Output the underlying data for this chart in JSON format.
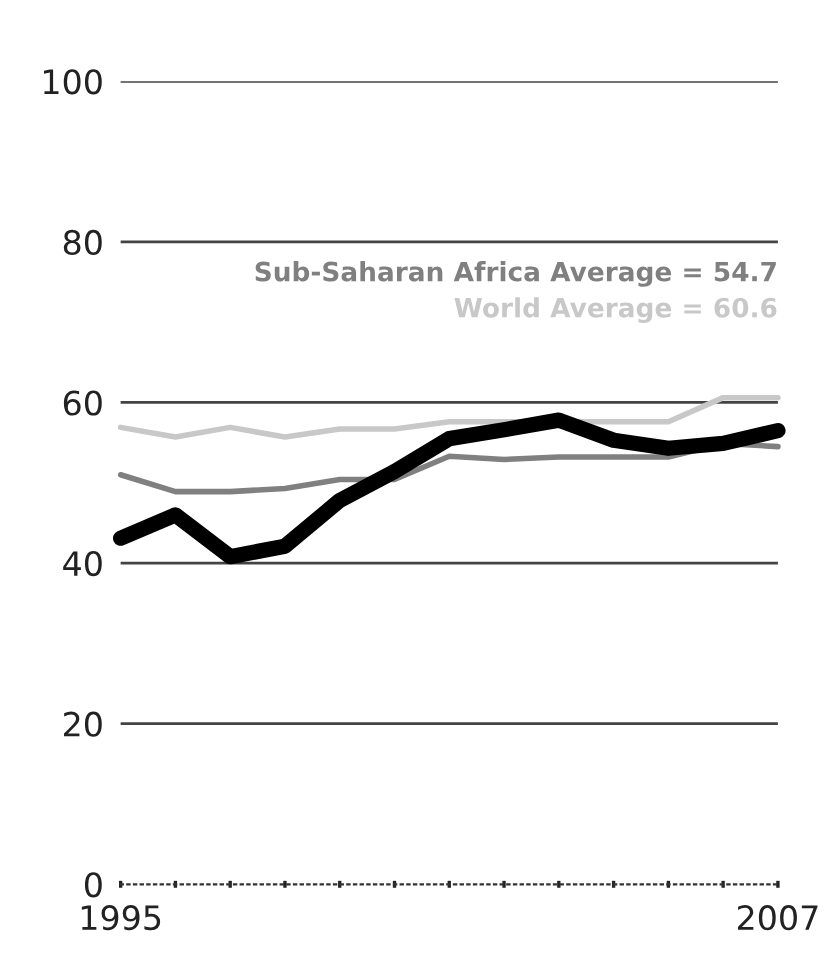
{
  "chart_data": {
    "type": "line",
    "x": [
      1995,
      1996,
      1997,
      1998,
      1999,
      2000,
      2001,
      2002,
      2003,
      2004,
      2005,
      2006,
      2007
    ],
    "series": [
      {
        "color": "#000000",
        "values": [
          43.1,
          46.0,
          40.8,
          42.1,
          47.8,
          51.4,
          55.5,
          56.6,
          57.8,
          55.3,
          54.3,
          54.9,
          56.5
        ]
      },
      {
        "color": "#808080",
        "values": [
          51.0,
          48.9,
          48.9,
          49.3,
          50.4,
          50.4,
          53.3,
          52.9,
          53.2,
          53.2,
          53.2,
          54.9,
          54.5
        ]
      },
      {
        "color": "#c8c8c8",
        "values": [
          56.9,
          55.7,
          56.9,
          55.7,
          56.7,
          56.7,
          57.6,
          57.6,
          57.6,
          57.6,
          57.6,
          60.6,
          60.6
        ]
      }
    ],
    "annotations": [
      "Sub-Saharan Africa Average = 54.7",
      "World Average = 60.6"
    ],
    "xlim": [
      1995,
      2007
    ],
    "xticks": [
      1995,
      {
        "value": 1996,
        "label": null
      },
      {
        "value": 1997,
        "label": null
      },
      {
        "value": 1998,
        "label": null
      },
      {
        "value": 1999,
        "label": null
      },
      {
        "value": 2000,
        "label": null
      },
      {
        "value": 2001,
        "label": null
      },
      {
        "value": 2002,
        "label": null
      },
      {
        "value": 2003,
        "label": null
      },
      {
        "value": 2004,
        "label": null
      },
      {
        "value": 2005,
        "label": null
      },
      {
        "value": 2006,
        "label": null
      },
      2007
    ],
    "ylim": [
      0,
      100
    ],
    "yticks": [
      0,
      20,
      40,
      60,
      80,
      100
    ],
    "grid": "y",
    "marker": "none",
    "line_style": "solid"
  }
}
